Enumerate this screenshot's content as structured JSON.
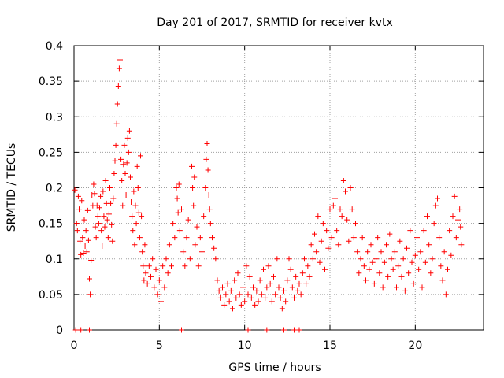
{
  "chart_data": {
    "type": "scatter",
    "title": "Day 201 of 2017, SRMTID for receiver kvtx",
    "xlabel": "GPS time / hours",
    "ylabel": "SRMTID / TECUs",
    "xlim": [
      0,
      24
    ],
    "ylim": [
      0,
      0.4
    ],
    "grid": true,
    "marker": "+",
    "colors": {
      "series": "#ff0000",
      "grid": "#a0a0a0",
      "axis": "#000000"
    },
    "x_ticks": [
      "0",
      "5",
      "10",
      "15",
      "20"
    ],
    "x_tick_values": [
      0,
      5,
      10,
      15,
      20
    ],
    "y_ticks": [
      "0",
      "0.05",
      "0.1",
      "0.15",
      "0.2",
      "0.25",
      "0.3",
      "0.35",
      "0.4"
    ],
    "y_tick_values": [
      0,
      0.05,
      0.1,
      0.15,
      0.2,
      0.25,
      0.3,
      0.35,
      0.4
    ],
    "series": [
      {
        "name": "SRMTID",
        "points": [
          [
            0.1,
            0.0
          ],
          [
            0.4,
            0.0
          ],
          [
            0.9,
            0.0
          ],
          [
            6.3,
            0.0
          ],
          [
            10.2,
            0.0
          ],
          [
            11.3,
            0.0
          ],
          [
            12.3,
            0.0
          ],
          [
            12.9,
            0.0
          ],
          [
            13.2,
            0.0
          ],
          [
            0.05,
            0.197
          ],
          [
            0.15,
            0.15
          ],
          [
            0.2,
            0.14
          ],
          [
            0.25,
            0.188
          ],
          [
            0.3,
            0.17
          ],
          [
            0.35,
            0.125
          ],
          [
            0.4,
            0.106
          ],
          [
            0.45,
            0.182
          ],
          [
            0.5,
            0.13
          ],
          [
            0.55,
            0.108
          ],
          [
            0.6,
            0.155
          ],
          [
            0.65,
            0.118
          ],
          [
            0.7,
            0.14
          ],
          [
            0.75,
            0.11
          ],
          [
            0.8,
            0.168
          ],
          [
            0.85,
            0.126
          ],
          [
            0.9,
            0.072
          ],
          [
            0.95,
            0.05
          ],
          [
            1.0,
            0.098
          ],
          [
            1.05,
            0.19
          ],
          [
            1.1,
            0.175
          ],
          [
            1.15,
            0.205
          ],
          [
            1.2,
            0.192
          ],
          [
            1.25,
            0.145
          ],
          [
            1.3,
            0.13
          ],
          [
            1.35,
            0.175
          ],
          [
            1.4,
            0.16
          ],
          [
            1.45,
            0.15
          ],
          [
            1.5,
            0.172
          ],
          [
            1.55,
            0.188
          ],
          [
            1.6,
            0.14
          ],
          [
            1.65,
            0.118
          ],
          [
            1.7,
            0.195
          ],
          [
            1.75,
            0.16
          ],
          [
            1.8,
            0.145
          ],
          [
            1.85,
            0.21
          ],
          [
            1.9,
            0.178
          ],
          [
            1.95,
            0.155
          ],
          [
            2.0,
            0.13
          ],
          [
            2.05,
            0.163
          ],
          [
            2.1,
            0.2
          ],
          [
            2.15,
            0.178
          ],
          [
            2.2,
            0.148
          ],
          [
            2.25,
            0.125
          ],
          [
            2.3,
            0.185
          ],
          [
            2.35,
            0.22
          ],
          [
            2.4,
            0.238
          ],
          [
            2.45,
            0.26
          ],
          [
            2.5,
            0.29
          ],
          [
            2.55,
            0.318
          ],
          [
            2.6,
            0.343
          ],
          [
            2.65,
            0.368
          ],
          [
            2.7,
            0.38
          ],
          [
            2.75,
            0.24
          ],
          [
            2.8,
            0.21
          ],
          [
            2.85,
            0.175
          ],
          [
            2.9,
            0.233
          ],
          [
            2.95,
            0.26
          ],
          [
            3.0,
            0.22
          ],
          [
            3.05,
            0.19
          ],
          [
            3.1,
            0.235
          ],
          [
            3.15,
            0.27
          ],
          [
            3.2,
            0.25
          ],
          [
            3.25,
            0.28
          ],
          [
            3.3,
            0.215
          ],
          [
            3.35,
            0.18
          ],
          [
            3.4,
            0.16
          ],
          [
            3.45,
            0.14
          ],
          [
            3.5,
            0.195
          ],
          [
            3.55,
            0.12
          ],
          [
            3.6,
            0.175
          ],
          [
            3.65,
            0.15
          ],
          [
            3.7,
            0.23
          ],
          [
            3.75,
            0.2
          ],
          [
            3.8,
            0.165
          ],
          [
            3.85,
            0.13
          ],
          [
            3.9,
            0.245
          ],
          [
            3.95,
            0.16
          ],
          [
            4.0,
            0.11
          ],
          [
            4.05,
            0.09
          ],
          [
            4.1,
            0.07
          ],
          [
            4.15,
            0.12
          ],
          [
            4.2,
            0.08
          ],
          [
            4.3,
            0.065
          ],
          [
            4.4,
            0.09
          ],
          [
            4.5,
            0.075
          ],
          [
            4.6,
            0.1
          ],
          [
            4.7,
            0.06
          ],
          [
            4.8,
            0.085
          ],
          [
            4.9,
            0.05
          ],
          [
            5.0,
            0.07
          ],
          [
            5.1,
            0.04
          ],
          [
            5.2,
            0.09
          ],
          [
            5.3,
            0.06
          ],
          [
            5.4,
            0.1
          ],
          [
            5.5,
            0.08
          ],
          [
            5.6,
            0.12
          ],
          [
            5.7,
            0.09
          ],
          [
            5.8,
            0.15
          ],
          [
            5.9,
            0.13
          ],
          [
            6.0,
            0.2
          ],
          [
            6.05,
            0.185
          ],
          [
            6.1,
            0.165
          ],
          [
            6.15,
            0.205
          ],
          [
            6.2,
            0.14
          ],
          [
            6.3,
            0.17
          ],
          [
            6.4,
            0.11
          ],
          [
            6.5,
            0.09
          ],
          [
            6.6,
            0.13
          ],
          [
            6.7,
            0.155
          ],
          [
            6.8,
            0.1
          ],
          [
            6.9,
            0.23
          ],
          [
            6.95,
            0.2
          ],
          [
            7.0,
            0.175
          ],
          [
            7.05,
            0.215
          ],
          [
            7.1,
            0.12
          ],
          [
            7.2,
            0.145
          ],
          [
            7.3,
            0.09
          ],
          [
            7.4,
            0.13
          ],
          [
            7.5,
            0.11
          ],
          [
            7.6,
            0.16
          ],
          [
            7.7,
            0.2
          ],
          [
            7.75,
            0.24
          ],
          [
            7.8,
            0.262
          ],
          [
            7.85,
            0.225
          ],
          [
            7.9,
            0.19
          ],
          [
            7.95,
            0.17
          ],
          [
            8.0,
            0.15
          ],
          [
            8.1,
            0.13
          ],
          [
            8.2,
            0.115
          ],
          [
            8.3,
            0.1
          ],
          [
            8.4,
            0.07
          ],
          [
            8.5,
            0.055
          ],
          [
            8.6,
            0.045
          ],
          [
            8.7,
            0.06
          ],
          [
            8.8,
            0.035
          ],
          [
            8.9,
            0.05
          ],
          [
            9.0,
            0.065
          ],
          [
            9.1,
            0.04
          ],
          [
            9.2,
            0.055
          ],
          [
            9.3,
            0.03
          ],
          [
            9.4,
            0.07
          ],
          [
            9.5,
            0.045
          ],
          [
            9.6,
            0.08
          ],
          [
            9.7,
            0.05
          ],
          [
            9.8,
            0.035
          ],
          [
            9.9,
            0.06
          ],
          [
            10.0,
            0.04
          ],
          [
            10.1,
            0.09
          ],
          [
            10.2,
            0.05
          ],
          [
            10.3,
            0.075
          ],
          [
            10.4,
            0.045
          ],
          [
            10.5,
            0.06
          ],
          [
            10.6,
            0.035
          ],
          [
            10.7,
            0.055
          ],
          [
            10.8,
            0.04
          ],
          [
            10.9,
            0.07
          ],
          [
            11.0,
            0.05
          ],
          [
            11.1,
            0.085
          ],
          [
            11.2,
            0.045
          ],
          [
            11.3,
            0.06
          ],
          [
            11.4,
            0.09
          ],
          [
            11.5,
            0.065
          ],
          [
            11.6,
            0.04
          ],
          [
            11.7,
            0.075
          ],
          [
            11.8,
            0.05
          ],
          [
            11.9,
            0.1
          ],
          [
            12.0,
            0.06
          ],
          [
            12.1,
            0.045
          ],
          [
            12.2,
            0.03
          ],
          [
            12.3,
            0.055
          ],
          [
            12.4,
            0.04
          ],
          [
            12.5,
            0.07
          ],
          [
            12.6,
            0.1
          ],
          [
            12.7,
            0.085
          ],
          [
            12.8,
            0.06
          ],
          [
            12.9,
            0.045
          ],
          [
            13.0,
            0.075
          ],
          [
            13.1,
            0.055
          ],
          [
            13.2,
            0.065
          ],
          [
            13.3,
            0.05
          ],
          [
            13.4,
            0.08
          ],
          [
            13.5,
            0.1
          ],
          [
            13.6,
            0.065
          ],
          [
            13.7,
            0.09
          ],
          [
            13.8,
            0.075
          ],
          [
            13.9,
            0.12
          ],
          [
            14.0,
            0.1
          ],
          [
            14.1,
            0.135
          ],
          [
            14.2,
            0.11
          ],
          [
            14.3,
            0.16
          ],
          [
            14.4,
            0.095
          ],
          [
            14.5,
            0.125
          ],
          [
            14.6,
            0.15
          ],
          [
            14.7,
            0.085
          ],
          [
            14.8,
            0.14
          ],
          [
            14.9,
            0.115
          ],
          [
            15.0,
            0.17
          ],
          [
            15.1,
            0.13
          ],
          [
            15.2,
            0.175
          ],
          [
            15.3,
            0.185
          ],
          [
            15.4,
            0.14
          ],
          [
            15.5,
            0.12
          ],
          [
            15.6,
            0.17
          ],
          [
            15.7,
            0.16
          ],
          [
            15.8,
            0.21
          ],
          [
            15.9,
            0.195
          ],
          [
            16.0,
            0.155
          ],
          [
            16.1,
            0.125
          ],
          [
            16.2,
            0.2
          ],
          [
            16.3,
            0.17
          ],
          [
            16.4,
            0.13
          ],
          [
            16.5,
            0.15
          ],
          [
            16.6,
            0.11
          ],
          [
            16.7,
            0.08
          ],
          [
            16.8,
            0.1
          ],
          [
            16.9,
            0.13
          ],
          [
            17.0,
            0.09
          ],
          [
            17.1,
            0.07
          ],
          [
            17.2,
            0.11
          ],
          [
            17.3,
            0.085
          ],
          [
            17.4,
            0.12
          ],
          [
            17.5,
            0.095
          ],
          [
            17.6,
            0.065
          ],
          [
            17.7,
            0.1
          ],
          [
            17.8,
            0.13
          ],
          [
            17.9,
            0.08
          ],
          [
            18.0,
            0.11
          ],
          [
            18.1,
            0.06
          ],
          [
            18.2,
            0.095
          ],
          [
            18.3,
            0.12
          ],
          [
            18.4,
            0.075
          ],
          [
            18.5,
            0.135
          ],
          [
            18.6,
            0.1
          ],
          [
            18.7,
            0.085
          ],
          [
            18.8,
            0.11
          ],
          [
            18.9,
            0.06
          ],
          [
            19.0,
            0.09
          ],
          [
            19.1,
            0.125
          ],
          [
            19.2,
            0.075
          ],
          [
            19.3,
            0.1
          ],
          [
            19.4,
            0.055
          ],
          [
            19.5,
            0.115
          ],
          [
            19.6,
            0.08
          ],
          [
            19.7,
            0.14
          ],
          [
            19.8,
            0.095
          ],
          [
            19.9,
            0.065
          ],
          [
            20.0,
            0.105
          ],
          [
            20.1,
            0.13
          ],
          [
            20.2,
            0.085
          ],
          [
            20.3,
            0.11
          ],
          [
            20.4,
            0.06
          ],
          [
            20.5,
            0.14
          ],
          [
            20.6,
            0.095
          ],
          [
            20.7,
            0.16
          ],
          [
            20.8,
            0.12
          ],
          [
            20.9,
            0.08
          ],
          [
            21.0,
            0.1
          ],
          [
            21.1,
            0.15
          ],
          [
            21.2,
            0.175
          ],
          [
            21.3,
            0.185
          ],
          [
            21.4,
            0.13
          ],
          [
            21.5,
            0.09
          ],
          [
            21.6,
            0.07
          ],
          [
            21.7,
            0.11
          ],
          [
            21.8,
            0.05
          ],
          [
            21.9,
            0.085
          ],
          [
            22.0,
            0.14
          ],
          [
            22.1,
            0.105
          ],
          [
            22.2,
            0.16
          ],
          [
            22.3,
            0.188
          ],
          [
            22.4,
            0.13
          ],
          [
            22.5,
            0.155
          ],
          [
            22.6,
            0.17
          ],
          [
            22.65,
            0.145
          ],
          [
            22.7,
            0.12
          ]
        ]
      }
    ]
  }
}
